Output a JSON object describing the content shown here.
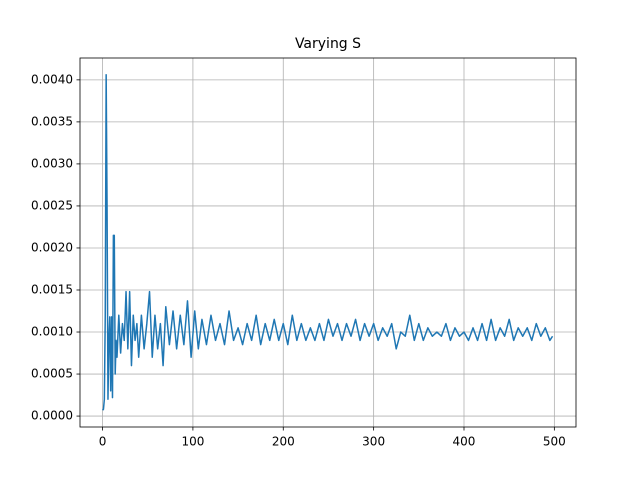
{
  "chart_data": {
    "type": "line",
    "title": "Varying S",
    "x": [
      0,
      1,
      2,
      3,
      4,
      5,
      6,
      7,
      8,
      9,
      10,
      11,
      12,
      13,
      14,
      15,
      16,
      18,
      20,
      22,
      24,
      26,
      28,
      30,
      32,
      34,
      36,
      38,
      40,
      43,
      46,
      49,
      52,
      55,
      58,
      61,
      64,
      67,
      70,
      74,
      78,
      82,
      86,
      90,
      94,
      98,
      102,
      106,
      110,
      115,
      120,
      125,
      130,
      135,
      140,
      145,
      150,
      155,
      160,
      165,
      170,
      175,
      180,
      185,
      190,
      195,
      200,
      205,
      210,
      215,
      220,
      225,
      230,
      235,
      240,
      245,
      250,
      255,
      260,
      265,
      270,
      275,
      280,
      285,
      290,
      295,
      300,
      305,
      310,
      315,
      320,
      325,
      330,
      335,
      340,
      345,
      350,
      355,
      360,
      365,
      370,
      375,
      380,
      385,
      390,
      395,
      400,
      405,
      410,
      415,
      420,
      425,
      430,
      435,
      440,
      445,
      450,
      455,
      460,
      465,
      470,
      475,
      480,
      485,
      490,
      495,
      498
    ],
    "series": [
      {
        "color": "#1f77b4",
        "values": [
          7e-05,
          8e-05,
          0.0002,
          0.0012,
          0.00406,
          0.0025,
          0.0002,
          0.0009,
          0.00118,
          0.0003,
          0.00118,
          0.00022,
          0.00215,
          0.00215,
          0.0005,
          0.0009,
          0.0007,
          0.0012,
          0.00075,
          0.0011,
          0.0009,
          0.00148,
          0.0008,
          0.00148,
          0.0006,
          0.0012,
          0.0009,
          0.0011,
          0.0007,
          0.0012,
          0.0008,
          0.0011,
          0.00148,
          0.0007,
          0.0012,
          0.0008,
          0.0011,
          0.0006,
          0.0013,
          0.00085,
          0.00125,
          0.0008,
          0.0012,
          0.00085,
          0.00137,
          0.0007,
          0.00125,
          0.0008,
          0.00115,
          0.00085,
          0.0012,
          0.0009,
          0.0011,
          0.00085,
          0.00125,
          0.0009,
          0.00105,
          0.00085,
          0.0011,
          0.0009,
          0.0012,
          0.00085,
          0.0011,
          0.0009,
          0.00115,
          0.0009,
          0.0011,
          0.00085,
          0.0012,
          0.0009,
          0.0011,
          0.0009,
          0.00105,
          0.0009,
          0.0011,
          0.0009,
          0.00115,
          0.00095,
          0.0011,
          0.0009,
          0.0011,
          0.00095,
          0.00115,
          0.0009,
          0.0011,
          0.00095,
          0.0011,
          0.0009,
          0.00105,
          0.00095,
          0.0011,
          0.0008,
          0.001,
          0.00095,
          0.0012,
          0.0009,
          0.0011,
          0.0009,
          0.00105,
          0.00095,
          0.001,
          0.00095,
          0.0011,
          0.0009,
          0.00105,
          0.00095,
          0.001,
          0.0009,
          0.00105,
          0.0009,
          0.0011,
          0.0009,
          0.00115,
          0.0009,
          0.00105,
          0.00095,
          0.00115,
          0.0009,
          0.00105,
          0.00095,
          0.00105,
          0.0009,
          0.0011,
          0.00095,
          0.00105,
          0.0009,
          0.00095
        ]
      }
    ],
    "xlim": [
      -24.95,
      523.95
    ],
    "xticks": [
      0,
      100,
      200,
      300,
      400,
      500
    ],
    "ylim": [
      -0.00013,
      0.00426
    ],
    "yticks": [
      {
        "value": 0,
        "label": "0.0000"
      },
      {
        "value": 0.0005,
        "label": "0.0005"
      },
      {
        "value": 0.001,
        "label": "0.0010"
      },
      {
        "value": 0.0015,
        "label": "0.0015"
      },
      {
        "value": 0.002,
        "label": "0.0020"
      },
      {
        "value": 0.0025,
        "label": "0.0025"
      },
      {
        "value": 0.003,
        "label": "0.0030"
      },
      {
        "value": 0.0035,
        "label": "0.0035"
      },
      {
        "value": 0.004,
        "label": "0.0040"
      }
    ],
    "grid": true
  }
}
